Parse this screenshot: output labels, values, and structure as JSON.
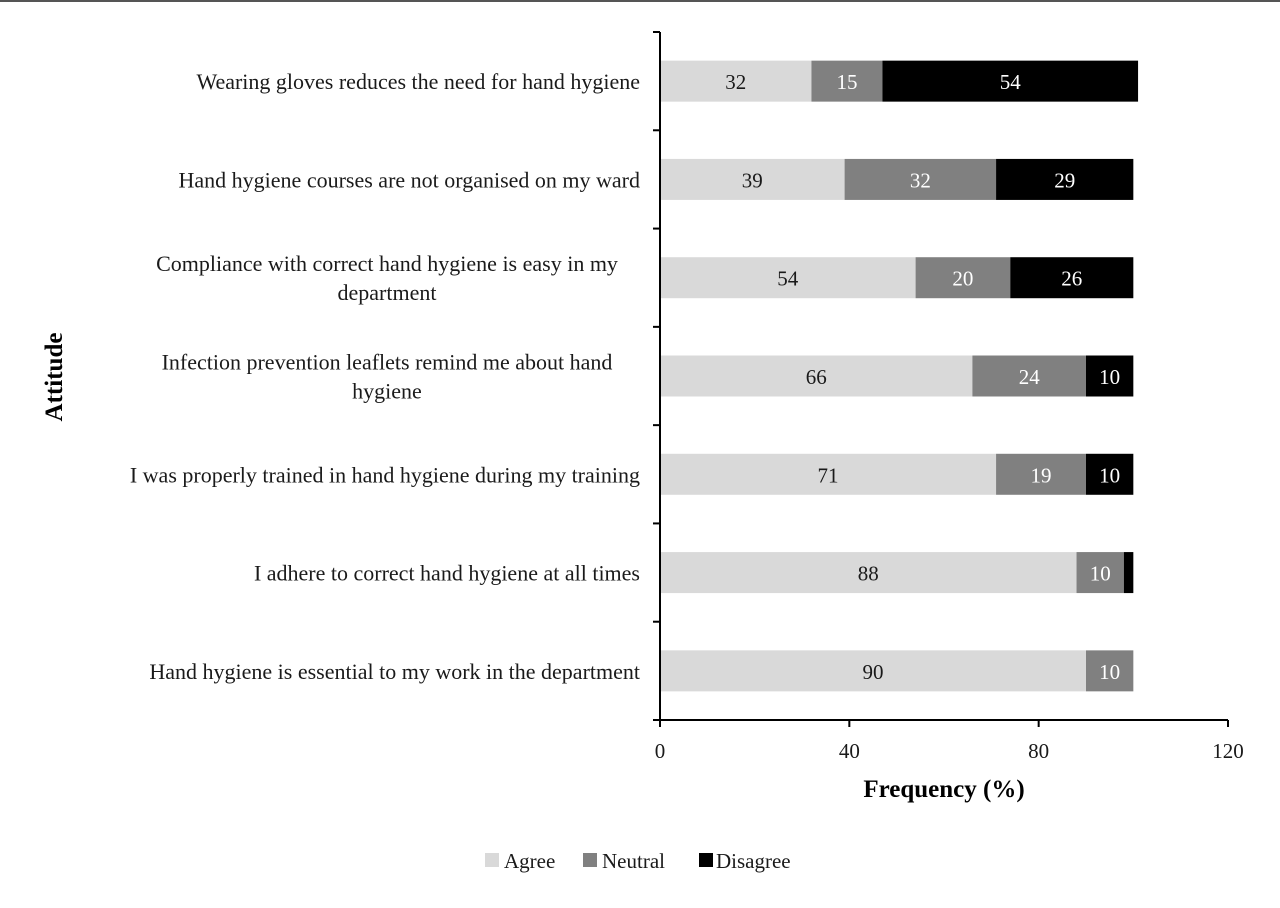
{
  "chart_data": {
    "type": "bar",
    "orientation": "horizontal",
    "stacked": true,
    "title": "",
    "xlabel": "Frequency (%)",
    "ylabel": "Attitude",
    "xlim": [
      0,
      120
    ],
    "xticks": [
      0,
      40,
      80,
      120
    ],
    "grid": false,
    "legend_position": "bottom",
    "categories": [
      "Wearing gloves reduces the need for hand hygiene",
      "Hand hygiene courses are not organised on my ward",
      "Compliance with correct hand hygiene is easy in my department",
      "Infection prevention leaflets remind me about hand hygiene",
      "I was properly trained in hand hygiene during my training",
      "I adhere to correct hand hygiene at all times",
      "Hand hygiene is essential to my work in the department"
    ],
    "category_lines": [
      [
        "Wearing gloves reduces the need for hand hygiene"
      ],
      [
        "Hand hygiene courses are not organised on my ward"
      ],
      [
        "Compliance with correct hand hygiene is easy in my",
        "department"
      ],
      [
        "Infection prevention leaflets remind me about hand",
        "hygiene"
      ],
      [
        "I was properly trained in hand hygiene during my training"
      ],
      [
        "I adhere to correct hand hygiene at all times"
      ],
      [
        "Hand hygiene is essential to my work in the department"
      ]
    ],
    "series": [
      {
        "name": "Agree",
        "color": "#d9d9d9",
        "label_color": "#1a1a1a",
        "values": [
          32,
          39,
          54,
          66,
          71,
          88,
          90
        ]
      },
      {
        "name": "Neutral",
        "color": "#808080",
        "label_color": "#ffffff",
        "values": [
          15,
          32,
          20,
          24,
          19,
          10,
          10
        ]
      },
      {
        "name": "Disagree",
        "color": "#000000",
        "label_color": "#ffffff",
        "values": [
          54,
          29,
          26,
          10,
          10,
          2,
          0
        ]
      }
    ],
    "data_labels": [
      [
        "32",
        "39",
        "54",
        "66",
        "71",
        "88",
        "90"
      ],
      [
        "15",
        "32",
        "20",
        "24",
        "19",
        "10",
        "10"
      ],
      [
        "54",
        "29",
        "26",
        "10",
        "10",
        "",
        ""
      ]
    ]
  }
}
